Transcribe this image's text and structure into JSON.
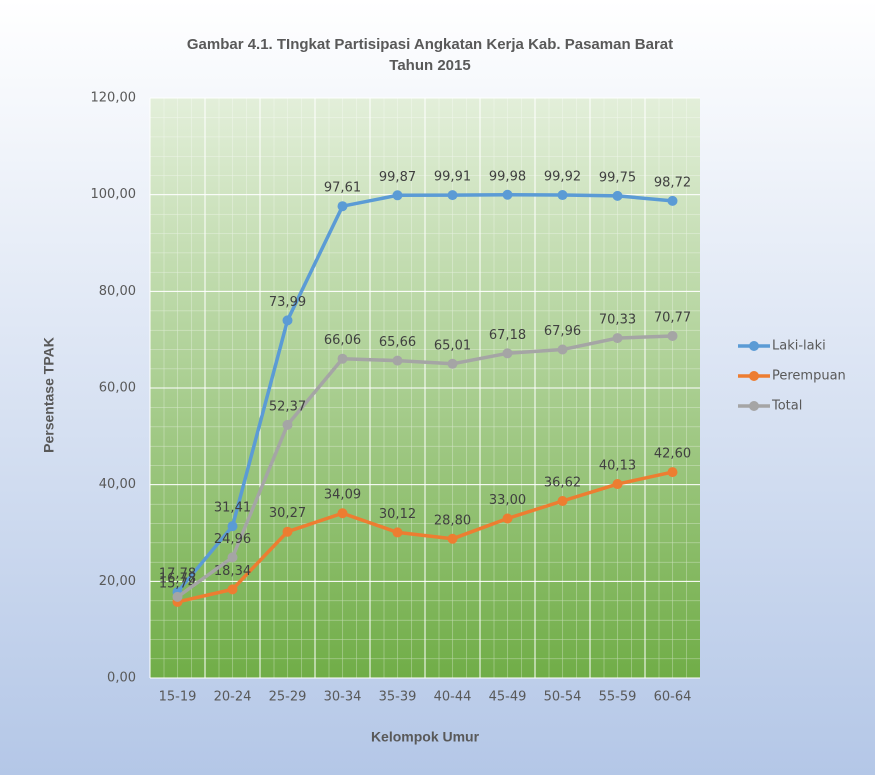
{
  "chart_data": {
    "type": "line",
    "title": "Gambar 4.1. TIngkat Partisipasi Angkatan Kerja Kab. Pasaman Barat",
    "subtitle": "Tahun 2015",
    "x_label": "Kelompok Umur",
    "y_label": "Persentase TPAK",
    "categories": [
      "15-19",
      "20-24",
      "25-29",
      "30-34",
      "35-39",
      "40-44",
      "45-49",
      "50-54",
      "55-59",
      "60-64"
    ],
    "series": [
      {
        "name": "Laki-laki",
        "color": "#5b9bd5",
        "values": [
          17.78,
          31.41,
          73.99,
          97.61,
          99.87,
          99.91,
          99.98,
          99.92,
          99.75,
          98.72
        ],
        "value_labels": [
          "17,78",
          "31,41",
          "73,99",
          "97,61",
          "99,87",
          "99,91",
          "99,98",
          "99,92",
          "99,75",
          "98,72"
        ]
      },
      {
        "name": "Perempuan",
        "color": "#ed7d31",
        "values": [
          15.74,
          18.34,
          30.27,
          34.09,
          30.12,
          28.8,
          33.0,
          36.62,
          40.13,
          42.6
        ],
        "value_labels": [
          "15,74",
          "18,34",
          "30,27",
          "34,09",
          "30,12",
          "28,80",
          "33,00",
          "36,62",
          "40,13",
          "42,60"
        ]
      },
      {
        "name": "Total",
        "color": "#a5a5a5",
        "values": [
          16.78,
          24.96,
          52.37,
          66.06,
          65.66,
          65.01,
          67.18,
          67.96,
          70.33,
          70.77
        ],
        "value_labels": [
          "16,78",
          "24,96",
          "52,37",
          "66,06",
          "65,66",
          "65,01",
          "67,18",
          "67,96",
          "70,33",
          "70,77"
        ]
      }
    ],
    "ylim": [
      0,
      120
    ],
    "yticks": [
      {
        "value": 0,
        "label": "0,00"
      },
      {
        "value": 20,
        "label": "20,00"
      },
      {
        "value": 40,
        "label": "40,00"
      },
      {
        "value": 60,
        "label": "60,00"
      },
      {
        "value": 80,
        "label": "80,00"
      },
      {
        "value": 100,
        "label": "100,00"
      },
      {
        "value": 120,
        "label": "120,00"
      }
    ],
    "grid": true,
    "legend": "right"
  }
}
